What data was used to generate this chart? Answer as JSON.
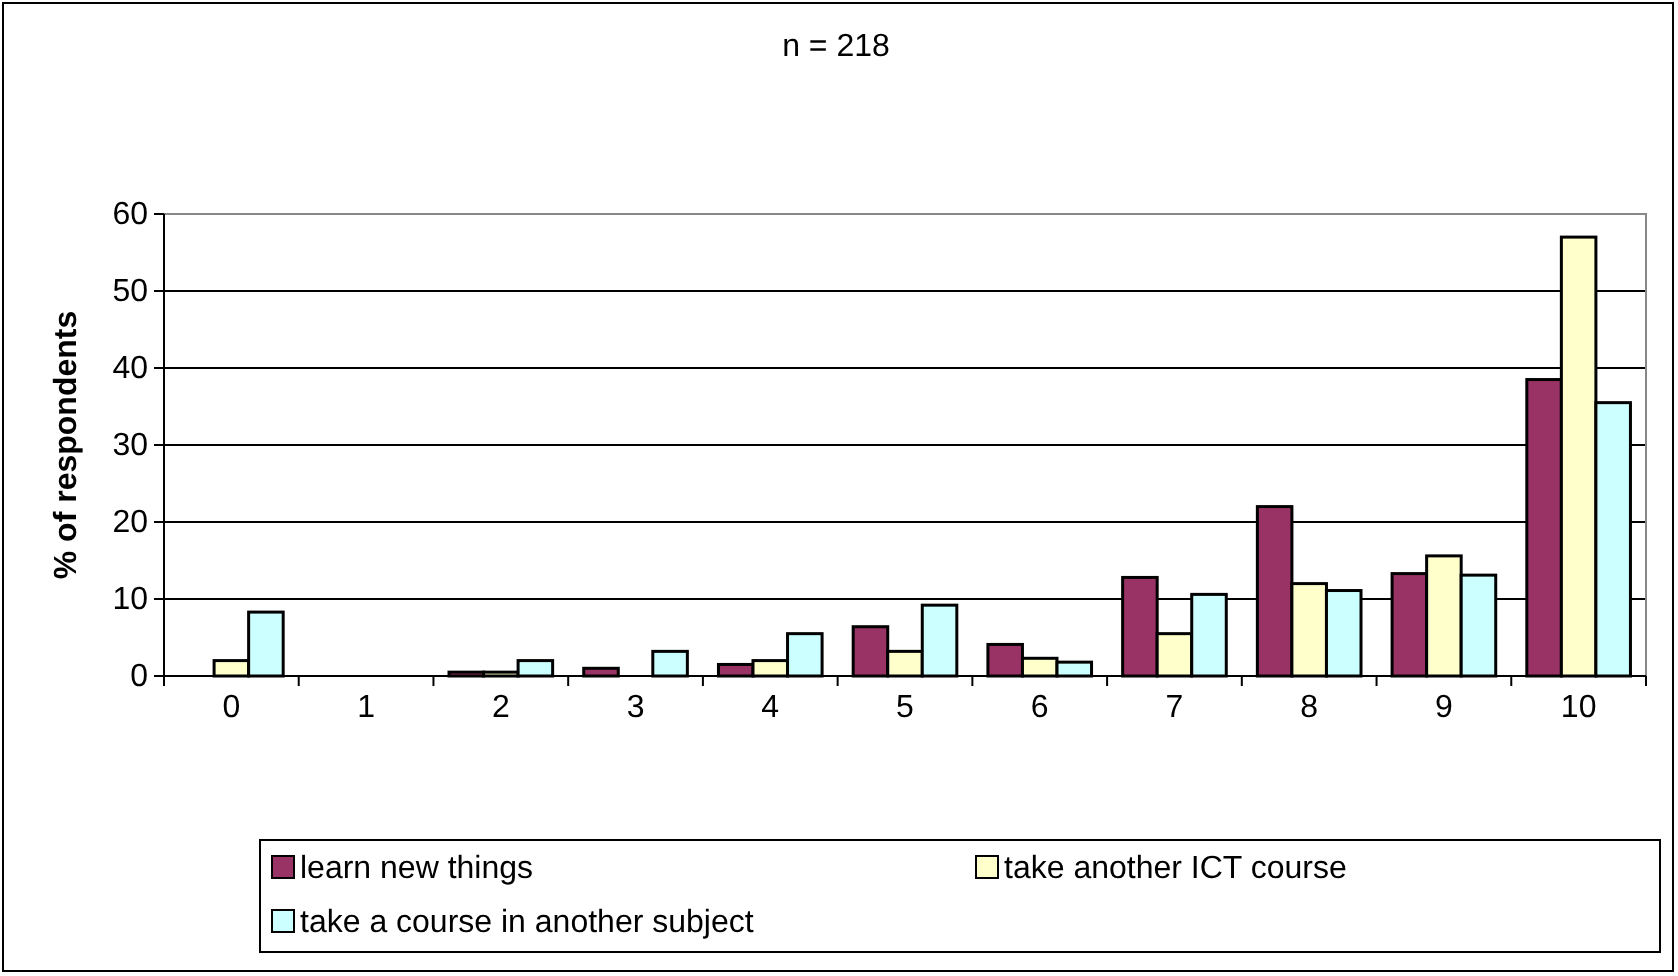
{
  "chart_data": {
    "type": "bar",
    "title": "n = 218",
    "ylabel": "% of respondents",
    "categories": [
      "0",
      "1",
      "2",
      "3",
      "4",
      "5",
      "6",
      "7",
      "8",
      "9",
      "10"
    ],
    "series": [
      {
        "name": "learn new things",
        "color": "#993366",
        "values": [
          0,
          0,
          0.5,
          1,
          1.5,
          6.4,
          4.1,
          12.8,
          22,
          13.3,
          38.5
        ]
      },
      {
        "name": "take another ICT course",
        "color": "#ffffcc",
        "values": [
          2,
          0,
          0.5,
          0,
          2,
          3.2,
          2.3,
          5.5,
          12,
          15.6,
          57
        ]
      },
      {
        "name": "take a course in another subject",
        "color": "#ccffff",
        "values": [
          8.3,
          0,
          2,
          3.2,
          5.5,
          9.2,
          1.8,
          10.6,
          11.1,
          13.1,
          35.5
        ]
      }
    ],
    "ylim": [
      0,
      60
    ],
    "yticks": [
      0,
      10,
      20,
      30,
      40,
      50,
      60
    ],
    "grid": "y",
    "legend": "bottom"
  }
}
